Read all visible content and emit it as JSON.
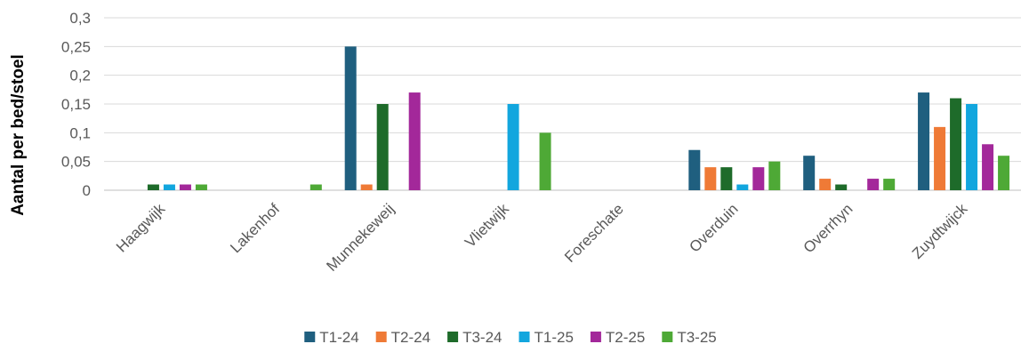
{
  "chart_data": {
    "type": "bar",
    "title": "",
    "xlabel": "",
    "ylabel": "Aantal per bed/stoel",
    "ylim": [
      0,
      0.3
    ],
    "yticks": [
      "0",
      "0,05",
      "0,1",
      "0,15",
      "0,2",
      "0,25",
      "0,3"
    ],
    "grid": true,
    "legend_position": "bottom",
    "categories": [
      "Haagwijk",
      "Lakenhof",
      "Munnekeweij",
      "Vlietwijk",
      "Foreschate",
      "Overduin",
      "Overrhyn",
      "Zuydtwijck"
    ],
    "series": [
      {
        "name": "T1-24",
        "color": "#1F5F7F",
        "values": [
          0,
          0,
          0.25,
          0,
          0,
          0.07,
          0.06,
          0.17
        ]
      },
      {
        "name": "T2-24",
        "color": "#EF7A36",
        "values": [
          0,
          0,
          0.01,
          0,
          0,
          0.04,
          0.02,
          0.11
        ]
      },
      {
        "name": "T3-24",
        "color": "#1E6B2A",
        "values": [
          0.01,
          0,
          0.15,
          0,
          0,
          0.04,
          0.01,
          0.16
        ]
      },
      {
        "name": "T1-25",
        "color": "#12A6DE",
        "values": [
          0.01,
          0,
          0,
          0.15,
          0,
          0.01,
          0,
          0.15
        ]
      },
      {
        "name": "T2-25",
        "color": "#A3289A",
        "values": [
          0.01,
          0,
          0.17,
          0,
          0,
          0.04,
          0.02,
          0.08
        ]
      },
      {
        "name": "T3-25",
        "color": "#4EA936",
        "values": [
          0.01,
          0.01,
          0,
          0.1,
          0,
          0.05,
          0.02,
          0.06
        ]
      }
    ]
  }
}
